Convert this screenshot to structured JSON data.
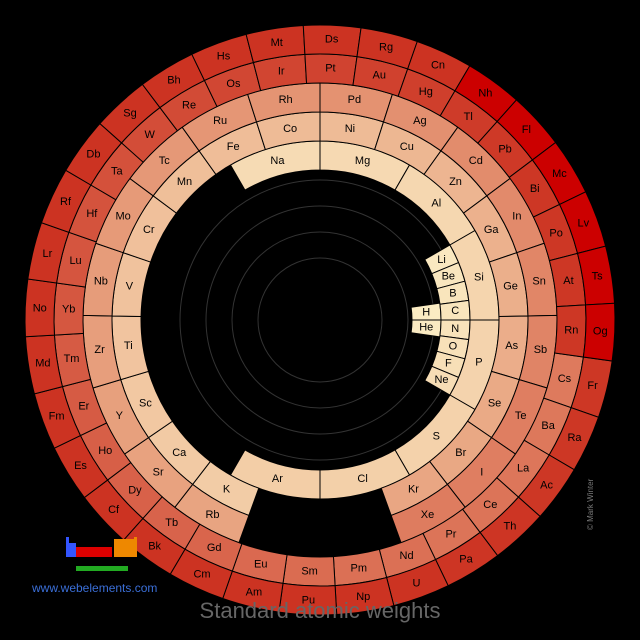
{
  "title": "Standard atomic weights",
  "website": "www.webelements.com",
  "credit": "© Mark Winter",
  "colors": {
    "background": "#000000",
    "light": "#fbeec5",
    "mid": "#e8a27f",
    "dark": "#cc3322",
    "darkest": "#cc0000",
    "border": "#000000"
  },
  "rings": [
    {
      "ring": 1,
      "elements": [
        {
          "symbol": "H",
          "level": 0.01
        },
        {
          "symbol": "He",
          "level": 0.02
        }
      ]
    },
    {
      "ring": 2,
      "elements": [
        {
          "symbol": "Li",
          "level": 0.03
        },
        {
          "symbol": "Be",
          "level": 0.04
        },
        {
          "symbol": "B",
          "level": 0.05
        },
        {
          "symbol": "C",
          "level": 0.05
        },
        {
          "symbol": "N",
          "level": 0.06
        },
        {
          "symbol": "O",
          "level": 0.07
        },
        {
          "symbol": "F",
          "level": 0.08
        },
        {
          "symbol": "Ne",
          "level": 0.09
        }
      ]
    },
    {
      "ring": 3,
      "elements": [
        {
          "symbol": "Na",
          "level": 0.1
        },
        {
          "symbol": "Mg",
          "level": 0.11
        },
        {
          "symbol": "Al",
          "level": 0.12
        },
        {
          "symbol": "Si",
          "level": 0.13
        },
        {
          "symbol": "P",
          "level": 0.14
        },
        {
          "symbol": "S",
          "level": 0.15
        },
        {
          "symbol": "Cl",
          "level": 0.16
        },
        {
          "symbol": "Ar",
          "level": 0.17
        }
      ]
    },
    {
      "ring": 4,
      "elements": [
        {
          "symbol": "K",
          "level": 0.18
        },
        {
          "symbol": "Ca",
          "level": 0.19
        },
        {
          "symbol": "Sc",
          "level": 0.2
        },
        {
          "symbol": "Ti",
          "level": 0.22
        },
        {
          "symbol": "V",
          "level": 0.23
        },
        {
          "symbol": "Cr",
          "level": 0.24
        },
        {
          "symbol": "Mn",
          "level": 0.25
        },
        {
          "symbol": "Fe",
          "level": 0.26
        },
        {
          "symbol": "Co",
          "level": 0.27
        },
        {
          "symbol": "Ni",
          "level": 0.27
        },
        {
          "symbol": "Cu",
          "level": 0.29
        },
        {
          "symbol": "Zn",
          "level": 0.3
        },
        {
          "symbol": "Ga",
          "level": 0.32
        },
        {
          "symbol": "Ge",
          "level": 0.33
        },
        {
          "symbol": "As",
          "level": 0.34
        },
        {
          "symbol": "Se",
          "level": 0.36
        },
        {
          "symbol": "Br",
          "level": 0.37
        },
        {
          "symbol": "Kr",
          "level": 0.38
        }
      ]
    },
    {
      "ring": 5,
      "elements": [
        {
          "symbol": "Rb",
          "level": 0.39
        },
        {
          "symbol": "Sr",
          "level": 0.4
        },
        {
          "symbol": "Y",
          "level": 0.41
        },
        {
          "symbol": "Zr",
          "level": 0.42
        },
        {
          "symbol": "Nb",
          "level": 0.43
        },
        {
          "symbol": "Mo",
          "level": 0.44
        },
        {
          "symbol": "Tc",
          "level": 0.45
        },
        {
          "symbol": "Ru",
          "level": 0.46
        },
        {
          "symbol": "Rh",
          "level": 0.47
        },
        {
          "symbol": "Pd",
          "level": 0.48
        },
        {
          "symbol": "Ag",
          "level": 0.49
        },
        {
          "symbol": "Cd",
          "level": 0.51
        },
        {
          "symbol": "In",
          "level": 0.52
        },
        {
          "symbol": "Sn",
          "level": 0.54
        },
        {
          "symbol": "Sb",
          "level": 0.55
        },
        {
          "symbol": "Te",
          "level": 0.58
        },
        {
          "symbol": "I",
          "level": 0.58
        },
        {
          "symbol": "Xe",
          "level": 0.59
        }
      ]
    },
    {
      "ring": 6,
      "elements": [
        {
          "symbol": "Cs",
          "level": 0.6
        },
        {
          "symbol": "Ba",
          "level": 0.61
        },
        {
          "symbol": "La",
          "level": 0.62
        },
        {
          "symbol": "Ce",
          "level": 0.63
        },
        {
          "symbol": "Pr",
          "level": 0.63
        },
        {
          "symbol": "Nd",
          "level": 0.65
        },
        {
          "symbol": "Pm",
          "level": 0.65
        },
        {
          "symbol": "Sm",
          "level": 0.67
        },
        {
          "symbol": "Eu",
          "level": 0.68
        },
        {
          "symbol": "Gd",
          "level": 0.7
        },
        {
          "symbol": "Tb",
          "level": 0.71
        },
        {
          "symbol": "Dy",
          "level": 0.72
        },
        {
          "symbol": "Ho",
          "level": 0.73
        },
        {
          "symbol": "Er",
          "level": 0.75
        },
        {
          "symbol": "Tm",
          "level": 0.75
        },
        {
          "symbol": "Yb",
          "level": 0.77
        },
        {
          "symbol": "Lu",
          "level": 0.78
        },
        {
          "symbol": "Hf",
          "level": 0.79
        },
        {
          "symbol": "Ta",
          "level": 0.8
        },
        {
          "symbol": "W",
          "level": 0.82
        },
        {
          "symbol": "Re",
          "level": 0.83
        },
        {
          "symbol": "Os",
          "level": 0.85
        },
        {
          "symbol": "Ir",
          "level": 0.86
        },
        {
          "symbol": "Pt",
          "level": 0.87
        },
        {
          "symbol": "Au",
          "level": 0.88
        },
        {
          "symbol": "Hg",
          "level": 0.89
        },
        {
          "symbol": "Tl",
          "level": 0.91
        },
        {
          "symbol": "Pb",
          "level": 0.92
        },
        {
          "symbol": "Bi",
          "level": 0.93
        },
        {
          "symbol": "Po",
          "level": 0.93
        },
        {
          "symbol": "At",
          "level": 0.93
        },
        {
          "symbol": "Rn",
          "level": 0.93
        }
      ]
    },
    {
      "ring": 7,
      "elements": [
        {
          "symbol": "Fr",
          "level": 0.93
        },
        {
          "symbol": "Ra",
          "level": 0.93
        },
        {
          "symbol": "Ac",
          "level": 0.93
        },
        {
          "symbol": "Th",
          "level": 0.94
        },
        {
          "symbol": "Pa",
          "level": 0.94
        },
        {
          "symbol": "U",
          "level": 0.95
        },
        {
          "symbol": "Np",
          "level": 0.95
        },
        {
          "symbol": "Pu",
          "level": 0.95
        },
        {
          "symbol": "Am",
          "level": 0.95
        },
        {
          "symbol": "Cm",
          "level": 0.95
        },
        {
          "symbol": "Bk",
          "level": 0.95
        },
        {
          "symbol": "Cf",
          "level": 0.95
        },
        {
          "symbol": "Es",
          "level": 0.95
        },
        {
          "symbol": "Fm",
          "level": 0.95
        },
        {
          "symbol": "Md",
          "level": 0.95
        },
        {
          "symbol": "No",
          "level": 0.95
        },
        {
          "symbol": "Lr",
          "level": 0.95
        },
        {
          "symbol": "Rf",
          "level": 0.95
        },
        {
          "symbol": "Db",
          "level": 0.95
        },
        {
          "symbol": "Sg",
          "level": 0.95
        },
        {
          "symbol": "Bh",
          "level": 0.95
        },
        {
          "symbol": "Hs",
          "level": 0.95
        },
        {
          "symbol": "Mt",
          "level": 0.95
        },
        {
          "symbol": "Ds",
          "level": 0.95
        },
        {
          "symbol": "Rg",
          "level": 0.95
        },
        {
          "symbol": "Cn",
          "level": 0.95
        },
        {
          "symbol": "Nh",
          "level": 1.0
        },
        {
          "symbol": "Fl",
          "level": 1.0
        },
        {
          "symbol": "Mc",
          "level": 1.0
        },
        {
          "symbol": "Lv",
          "level": 1.0
        },
        {
          "symbol": "Ts",
          "level": 1.0
        },
        {
          "symbol": "Og",
          "level": 1.0
        }
      ]
    }
  ]
}
